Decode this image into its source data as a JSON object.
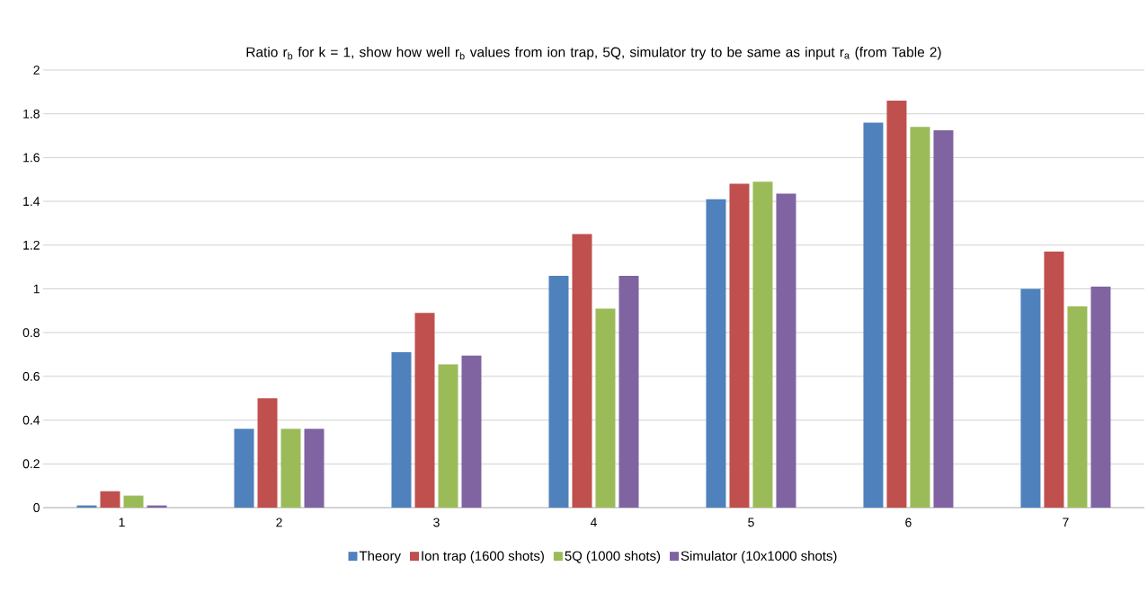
{
  "chart_data": {
    "type": "bar",
    "title": "Ratio r$_{b}$ for k = 1, show how well r$_{b}$ values from ion trap, 5Q, simulator try to be same as input r$_{a}$ (from Table 2)",
    "categories": [
      "1",
      "2",
      "3",
      "4",
      "5",
      "6",
      "7"
    ],
    "series": [
      {
        "name": "Theory",
        "color": "#4f81bd",
        "values": [
          0.01,
          0.36,
          0.71,
          1.06,
          1.41,
          1.76,
          1.0
        ]
      },
      {
        "name": "Ion trap (1600 shots)",
        "color": "#c0504d",
        "values": [
          0.075,
          0.5,
          0.89,
          1.25,
          1.48,
          1.86,
          1.17
        ]
      },
      {
        "name": "5Q (1000 shots)",
        "color": "#9bbb59",
        "values": [
          0.055,
          0.36,
          0.655,
          0.91,
          1.49,
          1.74,
          0.92
        ]
      },
      {
        "name": "Simulator (10x1000 shots)",
        "color": "#8064a2",
        "values": [
          0.01,
          0.36,
          0.695,
          1.06,
          1.435,
          1.725,
          1.01
        ]
      }
    ],
    "ylim": [
      0,
      2
    ],
    "yticks": [
      0,
      0.2,
      0.4,
      0.6,
      0.8,
      1,
      1.2,
      1.4,
      1.6,
      1.8,
      2
    ],
    "grid": "y",
    "legend": "bottom"
  }
}
